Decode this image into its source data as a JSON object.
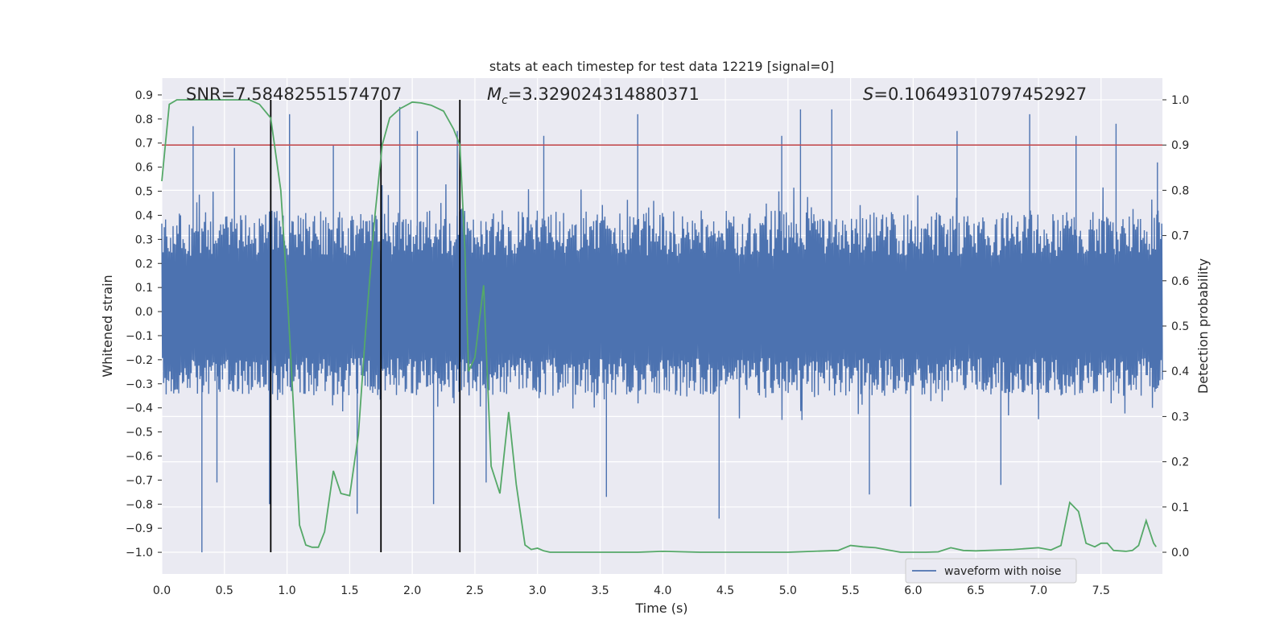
{
  "chart_data": {
    "type": "line",
    "title": "stats at each timestep for test data 12219 [signal=0]",
    "xlabel": "Time (s)",
    "ylabel_left": "Whitened strain",
    "ylabel_right": "Detection probability",
    "xlim": [
      0.0,
      7.99
    ],
    "ylim_left": [
      -1.09,
      0.97
    ],
    "ylim_right": [
      -0.048,
      1.048
    ],
    "x_ticks": [
      0.0,
      0.5,
      1.0,
      1.5,
      2.0,
      2.5,
      3.0,
      3.5,
      4.0,
      4.5,
      5.0,
      5.5,
      6.0,
      6.5,
      7.0,
      7.5
    ],
    "x_tick_labels": [
      "0.0",
      "0.5",
      "1.0",
      "1.5",
      "2.0",
      "2.5",
      "3.0",
      "3.5",
      "4.0",
      "4.5",
      "5.0",
      "5.5",
      "6.0",
      "6.5",
      "7.0",
      "7.5"
    ],
    "y_left_ticks": [
      0.9,
      0.8,
      0.7,
      0.6,
      0.5,
      0.4,
      0.3,
      0.2,
      0.1,
      0.0,
      -0.1,
      -0.2,
      -0.3,
      -0.4,
      -0.5,
      -0.6,
      -0.7,
      -0.8,
      -0.9,
      -1.0
    ],
    "y_left_tick_labels": [
      "0.9",
      "0.8",
      "0.7",
      "0.6",
      "0.5",
      "0.4",
      "0.3",
      "0.2",
      "0.1",
      "0.0",
      "−0.1",
      "−0.2",
      "−0.3",
      "−0.4",
      "−0.5",
      "−0.6",
      "−0.7",
      "−0.8",
      "−0.9",
      "−1.0"
    ],
    "y_right_ticks": [
      1.0,
      0.9,
      0.8,
      0.7,
      0.6,
      0.5,
      0.4,
      0.3,
      0.2,
      0.1,
      0.0
    ],
    "y_right_tick_labels": [
      "1.0",
      "0.9",
      "0.8",
      "0.7",
      "0.6",
      "0.5",
      "0.4",
      "0.3",
      "0.2",
      "0.1",
      "0.0"
    ],
    "annotations": {
      "snr": "SNR=7.58482551574707",
      "mc_symbol": "M",
      "mc_subscript": "c",
      "mc_value": "=3.329024314880371",
      "s_symbol": "S",
      "s_value": "=0.10649310797452927"
    },
    "threshold": {
      "value": 0.9,
      "axis": "right",
      "color": "#c44e52"
    },
    "vertical_lines": [
      0.87,
      1.75,
      2.38
    ],
    "waveform": {
      "name": "waveform with noise",
      "color": "#4c72b0",
      "duration_s": 7.99,
      "sample_count": 1600,
      "typical_band": [
        -0.35,
        0.42
      ],
      "spikes": [
        {
          "t": 0.25,
          "v": 0.77
        },
        {
          "t": 0.32,
          "v": -1.0
        },
        {
          "t": 0.44,
          "v": -0.71
        },
        {
          "t": 0.58,
          "v": 0.68
        },
        {
          "t": 0.86,
          "v": -0.8
        },
        {
          "t": 1.02,
          "v": 0.82
        },
        {
          "t": 1.37,
          "v": 0.69
        },
        {
          "t": 1.56,
          "v": -0.84
        },
        {
          "t": 1.9,
          "v": 0.85
        },
        {
          "t": 2.17,
          "v": -0.8
        },
        {
          "t": 2.36,
          "v": 0.75
        },
        {
          "t": 2.59,
          "v": -0.71
        },
        {
          "t": 3.05,
          "v": 0.73
        },
        {
          "t": 3.55,
          "v": -0.77
        },
        {
          "t": 3.8,
          "v": 0.82
        },
        {
          "t": 4.45,
          "v": -0.86
        },
        {
          "t": 4.95,
          "v": 0.73
        },
        {
          "t": 5.1,
          "v": 0.84
        },
        {
          "t": 5.35,
          "v": 0.84
        },
        {
          "t": 5.98,
          "v": -0.81
        },
        {
          "t": 6.35,
          "v": 0.75
        },
        {
          "t": 6.93,
          "v": 0.82
        },
        {
          "t": 7.3,
          "v": 0.73
        },
        {
          "t": 7.62,
          "v": 0.78
        },
        {
          "t": 7.95,
          "v": 0.62
        },
        {
          "t": 5.65,
          "v": -0.76
        },
        {
          "t": 6.7,
          "v": -0.72
        },
        {
          "t": 2.04,
          "v": 0.75
        }
      ]
    },
    "probability": {
      "color": "#55a868",
      "points": [
        [
          0.0,
          0.82
        ],
        [
          0.06,
          0.99
        ],
        [
          0.12,
          1.0
        ],
        [
          0.3,
          1.0
        ],
        [
          0.5,
          1.0
        ],
        [
          0.7,
          1.0
        ],
        [
          0.78,
          0.99
        ],
        [
          0.87,
          0.96
        ],
        [
          0.95,
          0.8
        ],
        [
          1.0,
          0.58
        ],
        [
          1.05,
          0.33
        ],
        [
          1.1,
          0.06
        ],
        [
          1.15,
          0.016
        ],
        [
          1.2,
          0.011
        ],
        [
          1.25,
          0.011
        ],
        [
          1.3,
          0.045
        ],
        [
          1.37,
          0.18
        ],
        [
          1.43,
          0.13
        ],
        [
          1.5,
          0.125
        ],
        [
          1.57,
          0.26
        ],
        [
          1.63,
          0.5
        ],
        [
          1.7,
          0.74
        ],
        [
          1.76,
          0.9
        ],
        [
          1.82,
          0.96
        ],
        [
          1.9,
          0.98
        ],
        [
          2.0,
          0.995
        ],
        [
          2.07,
          0.993
        ],
        [
          2.15,
          0.988
        ],
        [
          2.25,
          0.975
        ],
        [
          2.33,
          0.935
        ],
        [
          2.38,
          0.9
        ],
        [
          2.42,
          0.67
        ],
        [
          2.45,
          0.4
        ],
        [
          2.5,
          0.43
        ],
        [
          2.57,
          0.59
        ],
        [
          2.63,
          0.19
        ],
        [
          2.7,
          0.13
        ],
        [
          2.77,
          0.31
        ],
        [
          2.83,
          0.15
        ],
        [
          2.9,
          0.016
        ],
        [
          2.95,
          0.006
        ],
        [
          3.0,
          0.009
        ],
        [
          3.05,
          0.003
        ],
        [
          3.1,
          0.0
        ],
        [
          3.5,
          0.0
        ],
        [
          3.8,
          0.0
        ],
        [
          4.0,
          0.002
        ],
        [
          4.3,
          0.0
        ],
        [
          4.7,
          0.0
        ],
        [
          5.0,
          0.0
        ],
        [
          5.2,
          0.002
        ],
        [
          5.4,
          0.004
        ],
        [
          5.5,
          0.015
        ],
        [
          5.6,
          0.012
        ],
        [
          5.7,
          0.01
        ],
        [
          5.8,
          0.005
        ],
        [
          5.9,
          0.0
        ],
        [
          6.1,
          0.0
        ],
        [
          6.2,
          0.001
        ],
        [
          6.3,
          0.01
        ],
        [
          6.4,
          0.004
        ],
        [
          6.5,
          0.003
        ],
        [
          6.8,
          0.006
        ],
        [
          7.0,
          0.01
        ],
        [
          7.1,
          0.005
        ],
        [
          7.18,
          0.015
        ],
        [
          7.25,
          0.11
        ],
        [
          7.32,
          0.09
        ],
        [
          7.38,
          0.02
        ],
        [
          7.45,
          0.012
        ],
        [
          7.5,
          0.02
        ],
        [
          7.55,
          0.02
        ],
        [
          7.6,
          0.004
        ],
        [
          7.7,
          0.002
        ],
        [
          7.75,
          0.004
        ],
        [
          7.8,
          0.015
        ],
        [
          7.86,
          0.07
        ],
        [
          7.92,
          0.02
        ],
        [
          7.94,
          0.012
        ]
      ]
    },
    "legend": {
      "entries": [
        "waveform with noise"
      ],
      "location": "lower-right"
    }
  }
}
